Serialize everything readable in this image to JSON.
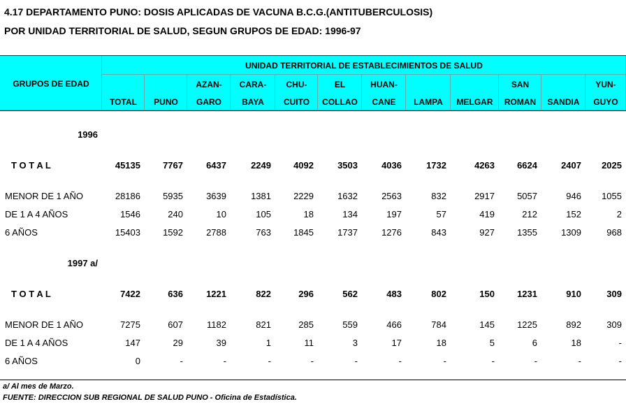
{
  "title": [
    "4.17  DEPARTAMENTO PUNO: DOSIS APLICADAS DE VACUNA B.C.G.(ANTITUBERCULOSIS)",
    "POR UNIDAD TERRITORIAL DE SALUD, SEGUN GRUPOS DE EDAD: 1996-97"
  ],
  "table": {
    "group_header": "GRUPOS DE EDAD",
    "span_header": "UNIDAD TERRITORIAL DE ESTABLECIMIENTOS DE SALUD",
    "columns": [
      [
        "TOTAL"
      ],
      [
        "PUNO"
      ],
      [
        "AZAN-",
        "GARO"
      ],
      [
        "CARA-",
        "BAYA"
      ],
      [
        "CHU-",
        "CUITO"
      ],
      [
        "EL",
        "COLLAO"
      ],
      [
        "HUAN-",
        "CANE"
      ],
      [
        "LAMPA"
      ],
      [
        "MELGAR"
      ],
      [
        "SAN",
        "ROMAN"
      ],
      [
        "SANDIA"
      ],
      [
        "YUN-",
        "GUYO"
      ]
    ],
    "sections": [
      {
        "year": "1996",
        "total": {
          "label": "T O T A L",
          "values": [
            45135,
            7767,
            6437,
            2249,
            4092,
            3503,
            4036,
            1732,
            4263,
            6624,
            2407,
            2025
          ]
        },
        "rows": [
          {
            "label": "MENOR DE 1 AÑO",
            "values": [
              28186,
              5935,
              3639,
              1381,
              2229,
              1632,
              2563,
              832,
              2917,
              5057,
              946,
              1055
            ]
          },
          {
            "label": "DE 1 A 4 AÑOS",
            "values": [
              1546,
              240,
              10,
              105,
              18,
              134,
              197,
              57,
              419,
              212,
              152,
              2
            ]
          },
          {
            "label": "6 AÑOS",
            "values": [
              15403,
              1592,
              2788,
              763,
              1845,
              1737,
              1276,
              843,
              927,
              1355,
              1309,
              968
            ]
          }
        ]
      },
      {
        "year": "1997 a/",
        "total": {
          "label": "T O T A L",
          "values": [
            7422,
            636,
            1221,
            822,
            296,
            562,
            483,
            802,
            150,
            1231,
            910,
            309
          ]
        },
        "rows": [
          {
            "label": "MENOR DE 1 AÑO",
            "values": [
              7275,
              607,
              1182,
              821,
              285,
              559,
              466,
              784,
              145,
              1225,
              892,
              309
            ]
          },
          {
            "label": "DE 1 A 4 AÑOS",
            "values": [
              147,
              29,
              39,
              1,
              11,
              3,
              17,
              18,
              5,
              6,
              18,
              "-"
            ]
          },
          {
            "label": "6 AÑOS",
            "values": [
              0,
              "-",
              "-",
              "-",
              "-",
              "-",
              "-",
              "-",
              "-",
              "-",
              "-",
              "-"
            ]
          }
        ]
      }
    ]
  },
  "notes": [
    "a/ Al mes de Marzo.",
    "FUENTE: DIRECCION SUB REGIONAL DE SALUD PUNO - Oficina de Estadística."
  ]
}
